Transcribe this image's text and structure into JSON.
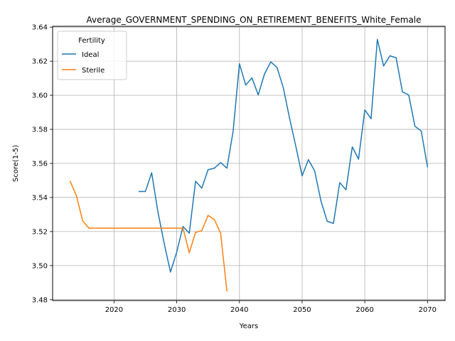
{
  "chart_data": {
    "type": "line",
    "title": "Average_GOVERNMENT_SPENDING_ON_RETIREMENT_BENEFITS_White_Female",
    "xlabel": "Years",
    "ylabel": "Score(1-5)",
    "xlim": [
      2010.2,
      2072.8
    ],
    "ylim": [
      3.4795,
      3.6405
    ],
    "xticks": [
      2020,
      2030,
      2040,
      2050,
      2060,
      2070
    ],
    "yticks": [
      3.48,
      3.5,
      3.52,
      3.54,
      3.56,
      3.58,
      3.6,
      3.62,
      3.64
    ],
    "grid": true,
    "legend": {
      "title": "Fertility",
      "placement": "top-left"
    },
    "series": [
      {
        "name": "Ideal",
        "color": "#1f77b4",
        "points": [
          [
            2024,
            3.5435
          ],
          [
            2025,
            3.5435
          ],
          [
            2026,
            3.5545
          ],
          [
            2027,
            3.5315
          ],
          [
            2028,
            3.513
          ],
          [
            2029,
            3.4962
          ],
          [
            2030,
            3.508
          ],
          [
            2031,
            3.523
          ],
          [
            2032,
            3.519
          ],
          [
            2033,
            3.5495
          ],
          [
            2034,
            3.5455
          ],
          [
            2035,
            3.5563
          ],
          [
            2036,
            3.5572
          ],
          [
            2037,
            3.5605
          ],
          [
            2038,
            3.5572
          ],
          [
            2039,
            3.579
          ],
          [
            2040,
            3.6185
          ],
          [
            2041,
            3.606
          ],
          [
            2042,
            3.6102
          ],
          [
            2043,
            3.6002
          ],
          [
            2044,
            3.6125
          ],
          [
            2045,
            3.6196
          ],
          [
            2046,
            3.6163
          ],
          [
            2047,
            3.6044
          ],
          [
            2048,
            3.5865
          ],
          [
            2049,
            3.57
          ],
          [
            2050,
            3.5527
          ],
          [
            2051,
            3.5622
          ],
          [
            2052,
            3.5556
          ],
          [
            2053,
            3.538
          ],
          [
            2054,
            3.526
          ],
          [
            2055,
            3.5248
          ],
          [
            2056,
            3.5487
          ],
          [
            2057,
            3.5445
          ],
          [
            2058,
            3.5697
          ],
          [
            2059,
            3.5625
          ],
          [
            2060,
            3.5914
          ],
          [
            2061,
            3.5862
          ],
          [
            2062,
            3.6328
          ],
          [
            2063,
            3.6172
          ],
          [
            2064,
            3.6232
          ],
          [
            2065,
            3.622
          ],
          [
            2066,
            3.602
          ],
          [
            2067,
            3.6002
          ],
          [
            2068,
            3.5818
          ],
          [
            2069,
            3.579
          ],
          [
            2070,
            3.558
          ]
        ]
      },
      {
        "name": "Sterile",
        "color": "#ff7f0e",
        "points": [
          [
            2013,
            3.5495
          ],
          [
            2014,
            3.541
          ],
          [
            2015,
            3.5262
          ],
          [
            2016,
            3.522
          ],
          [
            2017,
            3.522
          ],
          [
            2018,
            3.522
          ],
          [
            2019,
            3.522
          ],
          [
            2020,
            3.522
          ],
          [
            2021,
            3.522
          ],
          [
            2022,
            3.522
          ],
          [
            2023,
            3.522
          ],
          [
            2024,
            3.522
          ],
          [
            2025,
            3.522
          ],
          [
            2026,
            3.522
          ],
          [
            2027,
            3.522
          ],
          [
            2028,
            3.522
          ],
          [
            2029,
            3.522
          ],
          [
            2030,
            3.522
          ],
          [
            2031,
            3.522
          ],
          [
            2032,
            3.5075
          ],
          [
            2033,
            3.5195
          ],
          [
            2034,
            3.5205
          ],
          [
            2035,
            3.5295
          ],
          [
            2036,
            3.527
          ],
          [
            2037,
            3.519
          ],
          [
            2038,
            3.4852
          ]
        ]
      }
    ]
  }
}
